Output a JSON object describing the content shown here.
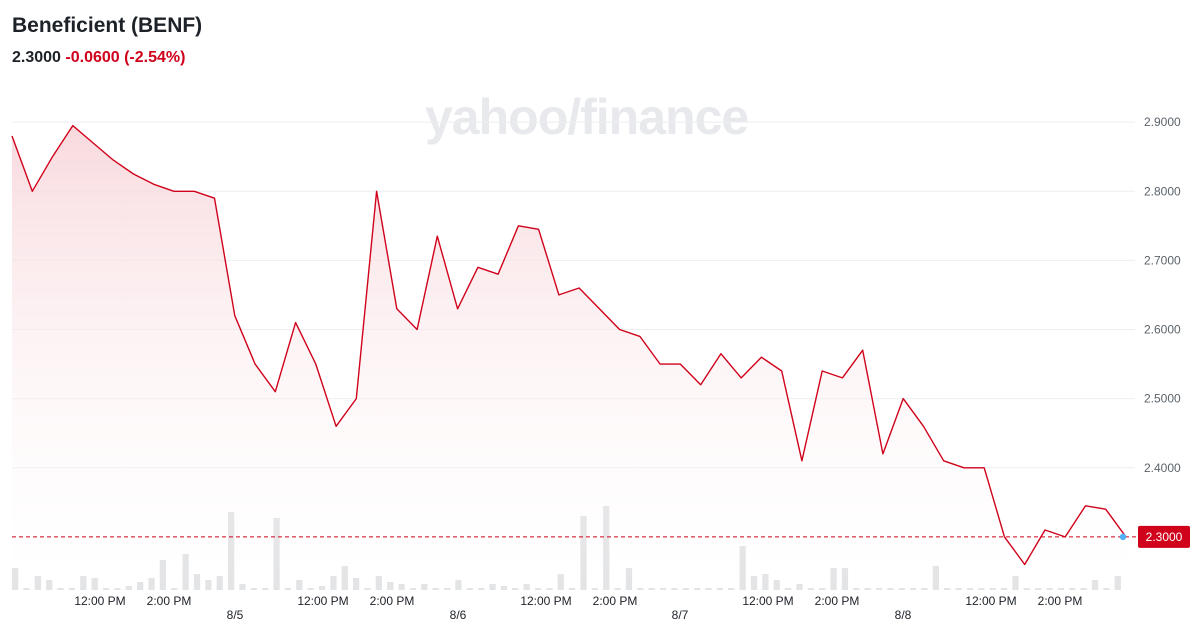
{
  "header": {
    "title": "Beneficient (BENF)",
    "price": "2.3000",
    "change": "-0.0600 (-2.54%)",
    "watermark": "yahoo/finance"
  },
  "colors": {
    "line": "#d0021b",
    "fill_top": "#f8d6da",
    "volume": "#e0e1e3",
    "grid": "#eceef0",
    "current_dot": "#4fb0f5"
  },
  "chart_data": {
    "type": "line",
    "ylim": [
      2.2,
      3.0
    ],
    "y_ticks": [
      "2.4000",
      "2.5000",
      "2.6000",
      "2.7000",
      "2.8000",
      "2.9000"
    ],
    "y_tick_values": [
      2.4,
      2.5,
      2.6,
      2.7,
      2.8,
      2.9
    ],
    "x_tick_labels": [
      "12:00 PM",
      "2:00 PM",
      "12:00 PM",
      "2:00 PM",
      "12:00 PM",
      "2:00 PM",
      "12:00 PM",
      "2:00 PM",
      "12:00 PM",
      "2:00 PM"
    ],
    "date_labels": [
      "8/5",
      "8/6",
      "8/7",
      "8/8"
    ],
    "current_price": 2.3,
    "current_label": "2.3000",
    "price_series": [
      2.88,
      2.8,
      2.85,
      2.895,
      2.87,
      2.845,
      2.825,
      2.81,
      2.8,
      2.8,
      2.79,
      2.62,
      2.55,
      2.51,
      2.61,
      2.55,
      2.46,
      2.5,
      2.8,
      2.63,
      2.6,
      2.735,
      2.63,
      2.69,
      2.68,
      2.75,
      2.745,
      2.65,
      2.66,
      2.63,
      2.6,
      2.59,
      2.55,
      2.55,
      2.52,
      2.565,
      2.53,
      2.56,
      2.54,
      2.41,
      2.54,
      2.53,
      2.57,
      2.42,
      2.5,
      2.46,
      2.41,
      2.4,
      2.4,
      2.3,
      2.26,
      2.31,
      2.3,
      2.345,
      2.34,
      2.3
    ],
    "volume_series": [
      22,
      2,
      14,
      10,
      2,
      2,
      14,
      12,
      2,
      2,
      4,
      8,
      12,
      30,
      2,
      36,
      16,
      10,
      14,
      78,
      6,
      2,
      2,
      72,
      2,
      10,
      2,
      4,
      14,
      24,
      12,
      2,
      14,
      8,
      6,
      2,
      6,
      2,
      2,
      10,
      2,
      2,
      6,
      4,
      2,
      6,
      2,
      2,
      16,
      2,
      74,
      2,
      84,
      2,
      22,
      2,
      2,
      2,
      2,
      2,
      2,
      2,
      2,
      2,
      44,
      14,
      16,
      10,
      2,
      6,
      2,
      2,
      22,
      22,
      2,
      2,
      2,
      2,
      2,
      2,
      2,
      24,
      2,
      2,
      2,
      2,
      2,
      2,
      14,
      2,
      2,
      2,
      2,
      2,
      2,
      10,
      2,
      14
    ]
  }
}
